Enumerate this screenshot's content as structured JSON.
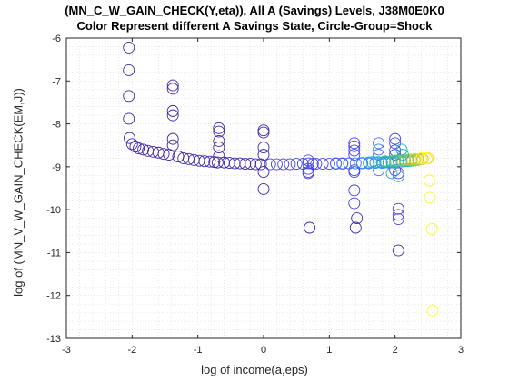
{
  "chart_data": {
    "type": "scatter",
    "title": "(MN_C_W_GAIN_CHECK(Y,eta)), All A (Savings) Levels, J38M0E0K0",
    "subtitle": "Color Represent different A Savings State, Circle-Group=Shock",
    "xlabel": "log of income(a,eps)",
    "ylabel": "log of (MN_V_W_GAIN_CHECK(EM,J))",
    "xlim": [
      -3,
      3
    ],
    "ylim": [
      -13,
      -6
    ],
    "xticks": [
      "-3",
      "-2",
      "-1",
      "0",
      "1",
      "2",
      "3"
    ],
    "yticks": [
      "-6",
      "-7",
      "-8",
      "-9",
      "-10",
      "-11",
      "-12",
      "-13"
    ],
    "grid": "minor-dotted",
    "marker": "open-circle",
    "colormap": [
      "#3e26a8",
      "#4744e3",
      "#3b6efd",
      "#2c97ef",
      "#16b5c7",
      "#32c88f",
      "#85cb53",
      "#d8ba2c",
      "#fbd12b",
      "#f9fb15"
    ],
    "series": [
      {
        "color_level": 0,
        "x": [
          -2.05,
          -2.05,
          -2.05,
          -2.05,
          -2.04,
          -2.0,
          -1.95,
          -1.9,
          -1.83,
          -1.76,
          -1.68,
          -1.6,
          -1.52,
          -1.44,
          -1.38,
          -1.38,
          -1.38,
          -1.38,
          -1.38,
          -1.38,
          -1.3,
          -1.22,
          -1.14,
          -1.06,
          -0.98,
          -0.9,
          -0.82,
          -0.75,
          -0.7,
          -0.68,
          -0.68,
          -0.68,
          -0.68,
          -0.68,
          -0.6,
          -0.52,
          -0.44,
          -0.36,
          -0.28,
          -0.2,
          -0.12,
          -0.04,
          0.0,
          0.0,
          0.0,
          0.0,
          0.0,
          0.0,
          0.7,
          1.4,
          1.42,
          2.05
        ],
        "y": [
          -6.22,
          -6.75,
          -7.35,
          -7.88,
          -8.33,
          -8.47,
          -8.53,
          -8.57,
          -8.6,
          -8.63,
          -8.65,
          -8.67,
          -8.7,
          -8.72,
          -7.1,
          -7.18,
          -7.7,
          -7.8,
          -8.35,
          -8.5,
          -8.76,
          -8.8,
          -8.82,
          -8.84,
          -8.86,
          -8.87,
          -8.88,
          -8.89,
          -8.9,
          -8.1,
          -8.18,
          -8.4,
          -8.55,
          -8.75,
          -8.9,
          -8.91,
          -8.92,
          -8.92,
          -8.93,
          -8.93,
          -8.94,
          -8.94,
          -8.15,
          -8.2,
          -8.55,
          -8.72,
          -9.12,
          -9.52,
          -10.42,
          -10.42,
          -10.2,
          -10.95
        ]
      },
      {
        "color_level": 1,
        "x": [
          0.1,
          0.2,
          0.3,
          0.4,
          0.5,
          0.6,
          0.68,
          0.68,
          0.68,
          0.68,
          0.68,
          0.75,
          0.8,
          0.9,
          1.0,
          1.1,
          1.2,
          1.3,
          1.38,
          1.38,
          1.38,
          1.38,
          1.38,
          1.38,
          1.38,
          1.38,
          1.5,
          2.0,
          2.0,
          2.0,
          2.0,
          2.0,
          2.05,
          2.05,
          2.05,
          2.05
        ],
        "y": [
          -8.94,
          -8.94,
          -8.94,
          -8.94,
          -8.93,
          -8.93,
          -8.85,
          -8.92,
          -9.12,
          -9.05,
          -9.15,
          -8.93,
          -8.93,
          -8.93,
          -8.93,
          -8.92,
          -8.92,
          -8.92,
          -8.45,
          -8.52,
          -8.62,
          -8.72,
          -9.08,
          -9.12,
          -9.55,
          -9.85,
          -8.92,
          -8.35,
          -8.45,
          -8.62,
          -8.72,
          -9.08,
          -9.98,
          -10.12,
          -10.22,
          -9.15
        ]
      },
      {
        "color_level": 2,
        "x": [
          1.1,
          1.2,
          1.3,
          1.4,
          1.5,
          1.6,
          1.7,
          1.75,
          1.75,
          1.75,
          1.75,
          1.8,
          1.9,
          1.95
        ],
        "y": [
          -8.93,
          -8.93,
          -8.92,
          -8.92,
          -8.92,
          -8.92,
          -8.91,
          -8.45,
          -8.6,
          -8.72,
          -9.08,
          -8.91,
          -8.9,
          -8.9
        ]
      },
      {
        "color_level": 3,
        "x": [
          1.5,
          1.6,
          1.7,
          1.8,
          1.85,
          1.9,
          2.0,
          2.1
        ],
        "y": [
          -8.91,
          -8.9,
          -8.9,
          -8.9,
          -8.9,
          -8.89,
          -8.89,
          -8.88
        ]
      },
      {
        "color_level": 4,
        "x": [
          1.65,
          1.75,
          1.85,
          1.95,
          2.05,
          2.15,
          2.2
        ],
        "y": [
          -8.89,
          -8.89,
          -8.88,
          -8.88,
          -8.87,
          -8.87,
          -8.87
        ]
      },
      {
        "color_level": 5,
        "x": [
          1.85,
          1.95,
          2.05,
          2.15,
          2.25,
          2.3
        ],
        "y": [
          -8.87,
          -8.87,
          -8.86,
          -8.86,
          -8.86,
          -8.85
        ]
      },
      {
        "color_level": 6,
        "x": [
          2.0,
          2.1,
          2.2,
          2.3,
          2.35
        ],
        "y": [
          -8.85,
          -8.85,
          -8.84,
          -8.84,
          -8.84
        ]
      },
      {
        "color_level": 7,
        "x": [
          2.15,
          2.25,
          2.35,
          2.42
        ],
        "y": [
          -8.83,
          -8.83,
          -8.82,
          -8.82
        ]
      },
      {
        "color_level": 8,
        "x": [
          2.3,
          2.4,
          2.48,
          2.5
        ],
        "y": [
          -8.82,
          -8.81,
          -8.81,
          -8.8
        ]
      },
      {
        "color_level": 9,
        "x": [
          2.4,
          2.48,
          2.52,
          2.53,
          2.56,
          2.57
        ],
        "y": [
          -8.8,
          -8.8,
          -9.32,
          -9.72,
          -10.45,
          -12.35
        ]
      },
      {
        "color_level": 3,
        "x": [
          1.95,
          2.05
        ],
        "y": [
          -9.15,
          -9.22
        ]
      },
      {
        "color_level": 4,
        "x": [
          2.1,
          2.12
        ],
        "y": [
          -8.6,
          -8.72
        ]
      }
    ]
  }
}
